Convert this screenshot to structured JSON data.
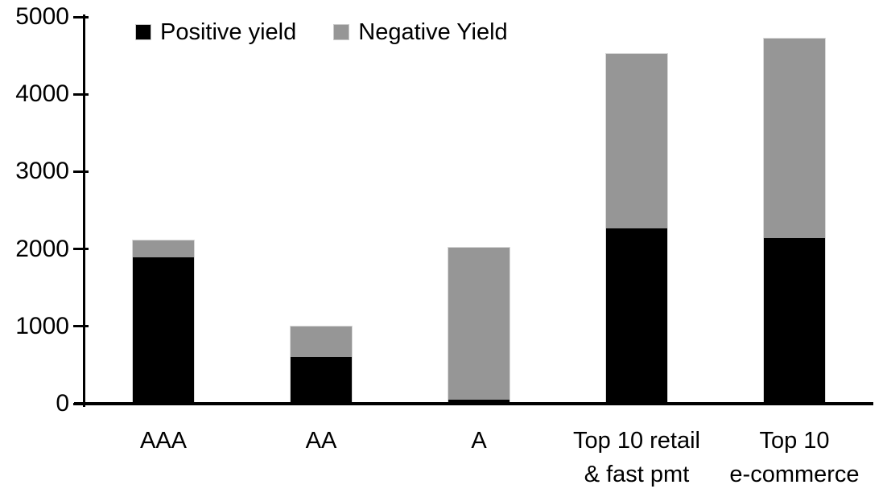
{
  "chart_data": {
    "type": "bar",
    "stacked": true,
    "title": "",
    "xlabel": "",
    "ylabel": "",
    "categories": [
      "AAA",
      "AA",
      "A",
      "Top 10 retail\n& fast pmt",
      "Top 10\ne-commerce"
    ],
    "series": [
      {
        "name": "Positive yield",
        "color": "#000000",
        "values": [
          1900,
          610,
          50,
          2280,
          2145
        ]
      },
      {
        "name": "Negative Yield",
        "color": "#969696",
        "values": [
          215,
          390,
          1980,
          2260,
          2590
        ]
      }
    ],
    "stack_totals": [
      2115,
      1000,
      2030,
      4540,
      4735
    ],
    "ylim": [
      0,
      5000
    ],
    "yticks": [
      0,
      1000,
      2000,
      3000,
      4000,
      5000
    ],
    "grid": false,
    "legend_position": "top",
    "axis_color": "#000000",
    "bar_border_color": "#d9d9d9"
  }
}
